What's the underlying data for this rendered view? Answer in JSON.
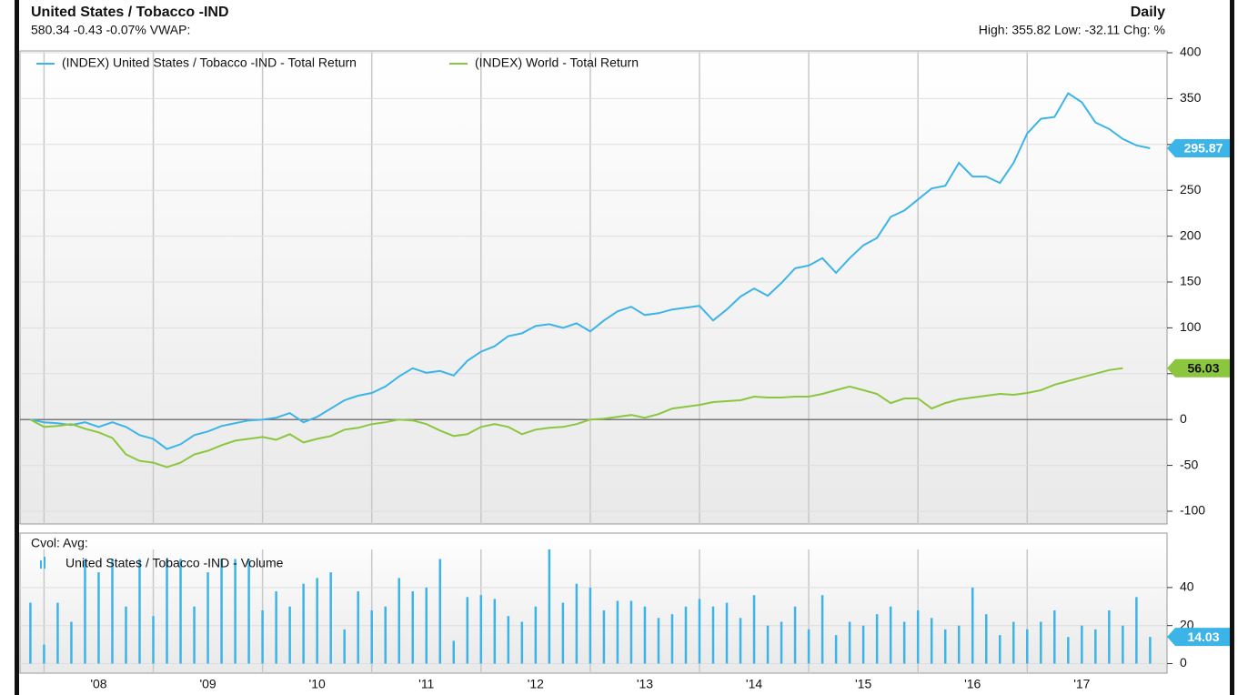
{
  "chart_data": [
    {
      "type": "line",
      "title": "United States / Tobacco -IND",
      "subtitle": "580.34 -0.43 -0.07%  VWAP:",
      "period": "Daily",
      "stats": "High: 355.82 Low: -32.11 Chg: %",
      "x": [
        2007.875,
        2008,
        2008.125,
        2008.25,
        2008.375,
        2008.5,
        2008.625,
        2008.75,
        2008.875,
        2009,
        2009.125,
        2009.25,
        2009.375,
        2009.5,
        2009.625,
        2009.75,
        2009.875,
        2010,
        2010.125,
        2010.25,
        2010.375,
        2010.5,
        2010.625,
        2010.75,
        2010.875,
        2011,
        2011.125,
        2011.25,
        2011.375,
        2011.5,
        2011.625,
        2011.75,
        2011.875,
        2012,
        2012.125,
        2012.25,
        2012.375,
        2012.5,
        2012.625,
        2012.75,
        2012.875,
        2013,
        2013.125,
        2013.25,
        2013.375,
        2013.5,
        2013.625,
        2013.75,
        2013.875,
        2014,
        2014.125,
        2014.25,
        2014.375,
        2014.5,
        2014.625,
        2014.75,
        2014.875,
        2015,
        2015.125,
        2015.25,
        2015.375,
        2015.5,
        2015.625,
        2015.75,
        2015.875,
        2016,
        2016.125,
        2016.25,
        2016.375,
        2016.5,
        2016.625,
        2016.75,
        2016.875,
        2017,
        2017.125,
        2017.25,
        2017.375,
        2017.5,
        2017.625,
        2017.75,
        2017.875,
        2018,
        2018.125
      ],
      "xlim": [
        2007.78,
        2018.28
      ],
      "ylim": [
        -100,
        400
      ],
      "yticks": [
        -100,
        -50,
        0,
        50,
        100,
        150,
        200,
        250,
        300,
        350,
        400
      ],
      "grid": true,
      "series": [
        {
          "name": "(INDEX) United States / Tobacco -IND - Total Return",
          "color": "#3db4e8",
          "values": [
            0,
            -3,
            -4,
            -6,
            -3,
            -8,
            -3,
            -8,
            -17,
            -21,
            -32.11,
            -27,
            -17,
            -13,
            -7,
            -4,
            -1,
            0,
            2,
            7,
            -3,
            3,
            12,
            21,
            26,
            29,
            36,
            47,
            56,
            51,
            53,
            48,
            64,
            74,
            80,
            91,
            94,
            102,
            104,
            100,
            105,
            96,
            108,
            118,
            123,
            114,
            116,
            120,
            122,
            124,
            108,
            120,
            134,
            143,
            135,
            149,
            165,
            168,
            176,
            160,
            176,
            190,
            198,
            221,
            228,
            240,
            252,
            255,
            280,
            265,
            265,
            258,
            280,
            312,
            328,
            330,
            355.82,
            346,
            324,
            317,
            306,
            299,
            295.87
          ]
        },
        {
          "name": "(INDEX) World - Total Return",
          "color": "#8cc63f",
          "values": [
            0,
            -8,
            -7,
            -5,
            -10,
            -14,
            -20,
            -38,
            -45,
            -47,
            -52,
            -47,
            -38,
            -34,
            -28,
            -23,
            -21,
            -19,
            -22,
            -16,
            -25,
            -21,
            -18,
            -11,
            -9,
            -5,
            -3,
            0,
            -1,
            -5,
            -12,
            -18,
            -16,
            -8,
            -5,
            -8,
            -16,
            -11,
            -9,
            -8,
            -5,
            0,
            1,
            3,
            5,
            2,
            6,
            12,
            14,
            16,
            19,
            20,
            21,
            25,
            24,
            24,
            25,
            25,
            28,
            32,
            36,
            32,
            28,
            18,
            23,
            23,
            12,
            18,
            22,
            24,
            26,
            28,
            27,
            29,
            32,
            38,
            42,
            46,
            50,
            54,
            56.03,
            null,
            null
          ]
        }
      ]
    },
    {
      "type": "bar",
      "title": "Cvol:  Avg:",
      "series_name": "United States / Tobacco -IND - Volume",
      "color": "#3db4e8",
      "x": [
        2007.875,
        2008,
        2008.125,
        2008.25,
        2008.375,
        2008.5,
        2008.625,
        2008.75,
        2008.875,
        2009,
        2009.125,
        2009.25,
        2009.375,
        2009.5,
        2009.625,
        2009.75,
        2009.875,
        2010,
        2010.125,
        2010.25,
        2010.375,
        2010.5,
        2010.625,
        2010.75,
        2010.875,
        2011,
        2011.125,
        2011.25,
        2011.375,
        2011.5,
        2011.625,
        2011.75,
        2011.875,
        2012,
        2012.125,
        2012.25,
        2012.375,
        2012.5,
        2012.625,
        2012.75,
        2012.875,
        2013,
        2013.125,
        2013.25,
        2013.375,
        2013.5,
        2013.625,
        2013.75,
        2013.875,
        2014,
        2014.125,
        2014.25,
        2014.375,
        2014.5,
        2014.625,
        2014.75,
        2014.875,
        2015,
        2015.125,
        2015.25,
        2015.375,
        2015.5,
        2015.625,
        2015.75,
        2015.875,
        2016,
        2016.125,
        2016.25,
        2016.375,
        2016.5,
        2016.625,
        2016.75,
        2016.875,
        2017,
        2017.125,
        2017.25,
        2017.375,
        2017.5,
        2017.625,
        2017.75,
        2017.875,
        2018,
        2018.125
      ],
      "values": [
        32,
        10,
        32,
        22,
        55,
        48,
        55,
        30,
        55,
        25,
        55,
        55,
        30,
        48,
        55,
        55,
        55,
        28,
        38,
        30,
        42,
        45,
        48,
        18,
        38,
        28,
        30,
        45,
        38,
        40,
        55,
        12,
        35,
        36,
        34,
        25,
        22,
        30,
        70,
        32,
        42,
        40,
        28,
        33,
        33,
        30,
        24,
        26,
        30,
        34,
        30,
        32,
        24,
        36,
        20,
        22,
        30,
        18,
        36,
        15,
        22,
        20,
        26,
        30,
        22,
        28,
        24,
        18,
        20,
        40,
        26,
        15,
        22,
        18,
        22,
        28,
        14,
        20,
        18,
        28,
        20,
        35,
        14.03
      ],
      "xlim": [
        2007.78,
        2018.28
      ],
      "xticks": [
        {
          "value": 2008,
          "label": "'08"
        },
        {
          "value": 2009,
          "label": "'09"
        },
        {
          "value": 2010,
          "label": "'10"
        },
        {
          "value": 2011,
          "label": "'11"
        },
        {
          "value": 2012,
          "label": "'12"
        },
        {
          "value": 2013,
          "label": "'13"
        },
        {
          "value": 2014,
          "label": "'14"
        },
        {
          "value": 2015,
          "label": "'15"
        },
        {
          "value": 2016,
          "label": "'16"
        },
        {
          "value": 2017,
          "label": "'17"
        }
      ],
      "ylim": [
        -5,
        60
      ],
      "yticks": [
        0,
        20,
        40
      ],
      "grid": true
    }
  ]
}
